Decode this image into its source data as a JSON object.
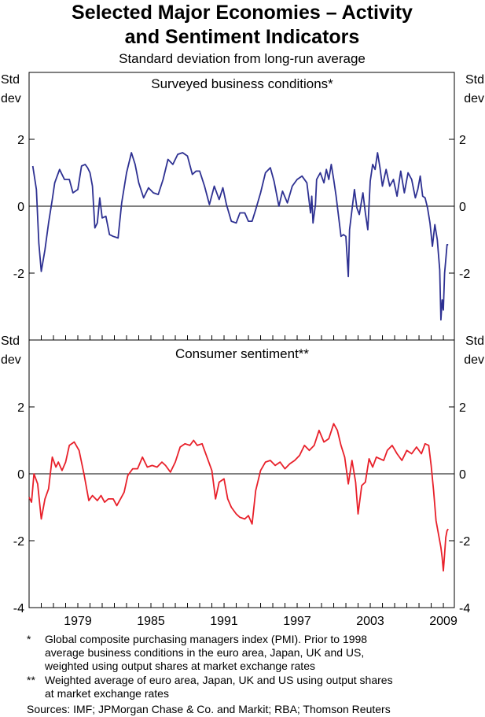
{
  "title_line1": "Selected Major Economies – Activity",
  "title_line2": "and Sentiment  Indicators",
  "subtitle": "Standard deviation from long-run average",
  "unit_label_line1": "Std",
  "unit_label_line2": "dev",
  "footnotes": [
    {
      "marker": "*",
      "lines": [
        "Global composite purchasing managers index (PMI). Prior to 1998",
        "average business conditions in the euro area, Japan, UK and US,",
        "weighted using output shares at market exchange rates"
      ]
    },
    {
      "marker": "**",
      "lines": [
        "Weighted average of euro area, Japan, UK and US using output shares",
        "at market exchange rates"
      ]
    }
  ],
  "sources": "Sources: IMF; JPMorgan Chase & Co. and Markit; RBA; Thomson Reuters",
  "chart_data": [
    {
      "type": "line",
      "title": "Surveyed business conditions*",
      "ylabel": "Std dev",
      "ylim": [
        -4,
        4
      ],
      "yticks": [
        2,
        0,
        -2
      ],
      "ytick_labels": [
        "2",
        "0",
        "-2"
      ],
      "xlim": [
        1975,
        2009.9
      ],
      "xticks": [
        1979,
        1985,
        1991,
        1997,
        2003,
        2009
      ],
      "xtick_labels": [
        "1979",
        "1985",
        "1991",
        "1997",
        "2003",
        "2009"
      ],
      "grid": false,
      "color": "#2e3192",
      "series": [
        {
          "x": [
            1975.3,
            1975.6,
            1975.8,
            1976.0,
            1976.3,
            1976.6,
            1976.9,
            1977.1,
            1977.5,
            1977.9,
            1978.3,
            1978.6,
            1979.0,
            1979.3,
            1979.6,
            1979.8,
            1980.0,
            1980.2,
            1980.4,
            1980.6,
            1980.8,
            1981.0,
            1981.3,
            1981.6,
            1981.9,
            1982.3,
            1982.6,
            1983.0,
            1983.4,
            1983.7,
            1984.0,
            1984.4,
            1984.8,
            1985.2,
            1985.6,
            1986.0,
            1986.4,
            1986.8,
            1987.2,
            1987.6,
            1988.0,
            1988.4,
            1988.7,
            1989.0,
            1989.4,
            1989.8,
            1990.2,
            1990.6,
            1990.9,
            1991.2,
            1991.6,
            1992.0,
            1992.3,
            1992.7,
            1993.0,
            1993.3,
            1993.6,
            1994.0,
            1994.4,
            1994.8,
            1995.1,
            1995.5,
            1995.8,
            1996.2,
            1996.6,
            1997.0,
            1997.4,
            1997.8,
            1998.1,
            1998.2,
            1998.3,
            1998.5,
            1998.6,
            1998.9,
            1999.2,
            1999.4,
            1999.6,
            1999.8,
            2000.0,
            2000.2,
            2000.4,
            2000.6,
            2000.8,
            2001.0,
            2001.2,
            2001.3,
            2001.5,
            2001.7,
            2001.9,
            2002.1,
            2002.4,
            2002.6,
            2002.8,
            2003.0,
            2003.2,
            2003.4,
            2003.6,
            2003.8,
            2004.0,
            2004.3,
            2004.6,
            2004.9,
            2005.2,
            2005.5,
            2005.8,
            2006.1,
            2006.4,
            2006.7,
            2006.9,
            2007.1,
            2007.3,
            2007.5,
            2007.7,
            2007.9,
            2008.1,
            2008.3,
            2008.5,
            2008.7,
            2008.8,
            2008.9,
            2009.0,
            2009.1,
            2009.2,
            2009.3,
            2009.4
          ],
          "values": [
            1.2,
            0.5,
            -1.1,
            -1.95,
            -1.3,
            -0.5,
            0.2,
            0.7,
            1.1,
            0.8,
            0.8,
            0.4,
            0.5,
            1.2,
            1.25,
            1.15,
            1.0,
            0.6,
            -0.65,
            -0.5,
            0.25,
            -0.35,
            -0.3,
            -0.85,
            -0.9,
            -0.95,
            0.1,
            1.0,
            1.6,
            1.25,
            0.7,
            0.25,
            0.55,
            0.4,
            0.35,
            0.8,
            1.4,
            1.25,
            1.55,
            1.6,
            1.5,
            0.95,
            1.05,
            1.05,
            0.6,
            0.05,
            0.6,
            0.2,
            0.55,
            0.05,
            -0.45,
            -0.5,
            -0.2,
            -0.2,
            -0.45,
            -0.45,
            -0.1,
            0.4,
            1.0,
            1.15,
            0.75,
            0.0,
            0.45,
            0.1,
            0.6,
            0.8,
            0.9,
            0.7,
            -0.2,
            0.3,
            -0.5,
            0.05,
            0.8,
            1.0,
            0.7,
            1.1,
            0.8,
            1.25,
            0.8,
            0.3,
            -0.3,
            -0.9,
            -0.85,
            -0.9,
            -2.1,
            -0.7,
            -0.1,
            0.5,
            -0.05,
            -0.25,
            0.4,
            -0.2,
            -0.7,
            0.75,
            1.25,
            1.1,
            1.6,
            1.15,
            0.6,
            1.1,
            0.6,
            0.8,
            0.3,
            1.05,
            0.4,
            1.0,
            0.8,
            0.25,
            0.5,
            0.9,
            0.3,
            0.25,
            -0.05,
            -0.5,
            -1.2,
            -0.55,
            -1.0,
            -1.9,
            -3.4,
            -2.8,
            -3.1,
            -2.0,
            -1.6,
            -1.15,
            -1.15
          ]
        }
      ]
    },
    {
      "type": "line",
      "title": "Consumer sentiment**",
      "ylabel": "Std dev",
      "ylim": [
        -4,
        4
      ],
      "yticks": [
        2,
        0,
        -2,
        -4
      ],
      "ytick_labels": [
        "2",
        "0",
        "-2",
        "-4"
      ],
      "xlim": [
        1975,
        2009.9
      ],
      "xticks": [
        1979,
        1985,
        1991,
        1997,
        2003,
        2009
      ],
      "xtick_labels": [
        "1979",
        "1985",
        "1991",
        "1997",
        "2003",
        "2009"
      ],
      "grid": false,
      "color": "#e8202a",
      "series": [
        {
          "x": [
            1975.0,
            1975.2,
            1975.4,
            1975.7,
            1976.0,
            1976.3,
            1976.6,
            1976.9,
            1977.2,
            1977.4,
            1977.7,
            1978.0,
            1978.3,
            1978.7,
            1979.1,
            1979.5,
            1979.9,
            1980.2,
            1980.6,
            1980.9,
            1981.2,
            1981.5,
            1981.9,
            1982.2,
            1982.5,
            1982.8,
            1983.1,
            1983.5,
            1983.9,
            1984.3,
            1984.7,
            1985.1,
            1985.5,
            1985.9,
            1986.2,
            1986.6,
            1987.0,
            1987.4,
            1987.8,
            1988.2,
            1988.5,
            1988.8,
            1989.2,
            1989.6,
            1990.0,
            1990.3,
            1990.6,
            1991.0,
            1991.3,
            1991.6,
            1992.0,
            1992.3,
            1992.7,
            1993.0,
            1993.3,
            1993.6,
            1994.0,
            1994.4,
            1994.8,
            1995.2,
            1995.6,
            1996.0,
            1996.4,
            1996.8,
            1997.2,
            1997.6,
            1998.0,
            1998.4,
            1998.8,
            1999.2,
            1999.6,
            2000.0,
            2000.3,
            2000.6,
            2000.9,
            2001.2,
            2001.5,
            2001.8,
            2002.0,
            2002.3,
            2002.6,
            2002.9,
            2003.2,
            2003.5,
            2003.8,
            2004.1,
            2004.4,
            2004.8,
            2005.2,
            2005.6,
            2006.0,
            2006.4,
            2006.8,
            2007.2,
            2007.5,
            2007.8,
            2008.0,
            2008.2,
            2008.4,
            2008.6,
            2008.8,
            2008.9,
            2009.0,
            2009.1,
            2009.2,
            2009.3,
            2009.4
          ],
          "values": [
            -0.7,
            -0.85,
            0.0,
            -0.3,
            -1.35,
            -0.75,
            -0.45,
            0.5,
            0.2,
            0.35,
            0.1,
            0.35,
            0.85,
            0.95,
            0.7,
            0.0,
            -0.8,
            -0.65,
            -0.8,
            -0.65,
            -0.85,
            -0.75,
            -0.75,
            -0.95,
            -0.75,
            -0.55,
            -0.05,
            0.15,
            0.15,
            0.5,
            0.2,
            0.25,
            0.2,
            0.35,
            0.25,
            0.05,
            0.35,
            0.8,
            0.9,
            0.85,
            1.0,
            0.85,
            0.9,
            0.5,
            0.1,
            -0.75,
            -0.25,
            -0.15,
            -0.75,
            -1.0,
            -1.2,
            -1.3,
            -1.35,
            -1.25,
            -1.5,
            -0.5,
            0.1,
            0.35,
            0.4,
            0.25,
            0.35,
            0.15,
            0.3,
            0.4,
            0.55,
            0.85,
            0.7,
            0.85,
            1.3,
            0.95,
            1.05,
            1.5,
            1.3,
            0.85,
            0.5,
            -0.3,
            0.4,
            -0.25,
            -1.2,
            -0.35,
            -0.25,
            0.45,
            0.2,
            0.5,
            0.45,
            0.4,
            0.7,
            0.85,
            0.6,
            0.4,
            0.7,
            0.6,
            0.8,
            0.6,
            0.9,
            0.85,
            0.25,
            -0.5,
            -1.4,
            -1.8,
            -2.2,
            -2.5,
            -2.9,
            -2.4,
            -1.9,
            -1.7,
            -1.65
          ]
        }
      ]
    }
  ]
}
